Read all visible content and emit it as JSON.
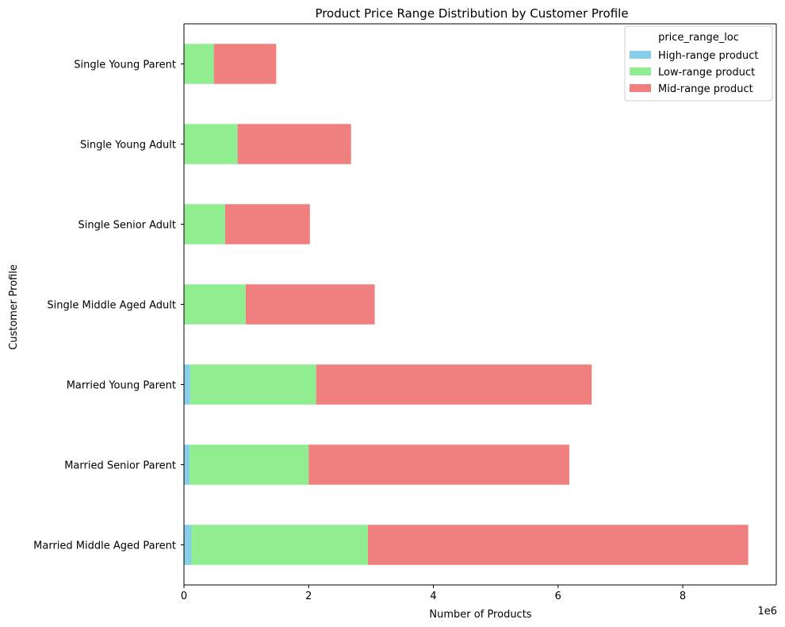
{
  "chart_data": {
    "type": "bar",
    "orientation": "horizontal",
    "stacked": true,
    "title": "Product Price Range Distribution by Customer Profile",
    "xlabel": "Number of Products",
    "ylabel": "Customer Profile",
    "x_offset_label": "1e6",
    "xlim": [
      0,
      9.5
    ],
    "x_ticks": [
      0,
      2,
      4,
      6,
      8
    ],
    "x_tick_labels": [
      "0",
      "2",
      "4",
      "6",
      "8"
    ],
    "grid": false,
    "legend": {
      "title": "price_range_loc",
      "position": "top-right"
    },
    "categories": [
      "Married Middle Aged Parent",
      "Married Senior Parent",
      "Married Young Parent",
      "Single Middle Aged Adult",
      "Single Senior Adult",
      "Single Young Adult",
      "Single Young Parent"
    ],
    "series": [
      {
        "name": "High-range product",
        "color": "#87ceeb",
        "values": [
          0.12,
          0.09,
          0.1,
          0.0,
          0.0,
          0.0,
          0.0
        ]
      },
      {
        "name": "Low-range product",
        "color": "#90ee90",
        "values": [
          2.83,
          1.91,
          2.02,
          0.99,
          0.66,
          0.86,
          0.48
        ]
      },
      {
        "name": "Mid-range product",
        "color": "#f08080",
        "values": [
          6.1,
          4.18,
          4.42,
          2.07,
          1.36,
          1.82,
          1.0
        ]
      }
    ]
  }
}
